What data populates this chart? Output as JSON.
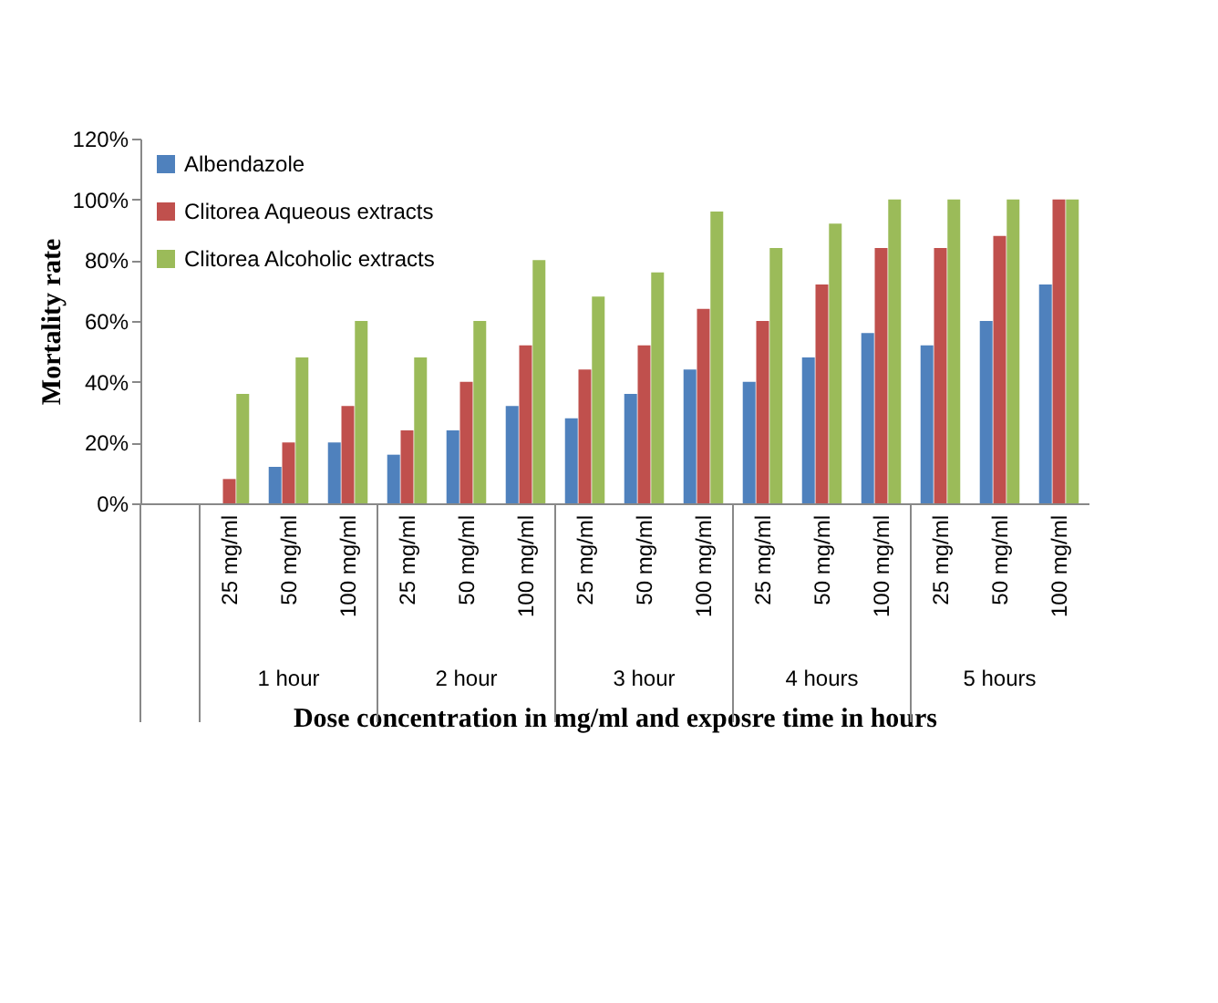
{
  "chart_data": {
    "type": "bar",
    "xlabel": "Dose concentration in mg/ml and exposre time in hours",
    "ylabel": "Mortality rate",
    "categories": [
      null,
      "25 mg/ml",
      "50 mg/ml",
      "100 mg/ml",
      "25 mg/ml",
      "50 mg/ml",
      "100 mg/ml",
      "25 mg/ml",
      "50 mg/ml",
      "100 mg/ml",
      "25 mg/ml",
      "50 mg/ml",
      "100 mg/ml",
      "25 mg/ml",
      "50 mg/ml",
      "100 mg/ml"
    ],
    "series": [
      {
        "name": "Albendazole",
        "color": "#4f81bd",
        "values": [
          null,
          0,
          12,
          20,
          16,
          24,
          32,
          28,
          36,
          44,
          40,
          48,
          56,
          52,
          60,
          72
        ]
      },
      {
        "name": "Clitorea  Aqueous extracts",
        "color": "#c0504d",
        "values": [
          null,
          8,
          20,
          32,
          24,
          40,
          52,
          44,
          52,
          64,
          60,
          72,
          84,
          84,
          88,
          100
        ]
      },
      {
        "name": "Clitorea  Alcoholic extracts",
        "color": "#9bbb59",
        "values": [
          null,
          36,
          48,
          60,
          48,
          60,
          80,
          68,
          76,
          96,
          84,
          92,
          100,
          100,
          100,
          100
        ]
      }
    ],
    "ylim": [
      0,
      120
    ],
    "yticks": [
      {
        "value": 0,
        "label": "0%"
      },
      {
        "value": 20,
        "label": "20%"
      },
      {
        "value": 40,
        "label": "40%"
      },
      {
        "value": 60,
        "label": "60%"
      },
      {
        "value": 80,
        "label": "80%"
      },
      {
        "value": 100,
        "label": "100%"
      },
      {
        "value": 120,
        "label": "120%"
      }
    ],
    "annotations": [
      "1 hour",
      "2 hour",
      "3 hour",
      "4 hours",
      "5 hours"
    ],
    "legend": "top left",
    "grid": false
  }
}
